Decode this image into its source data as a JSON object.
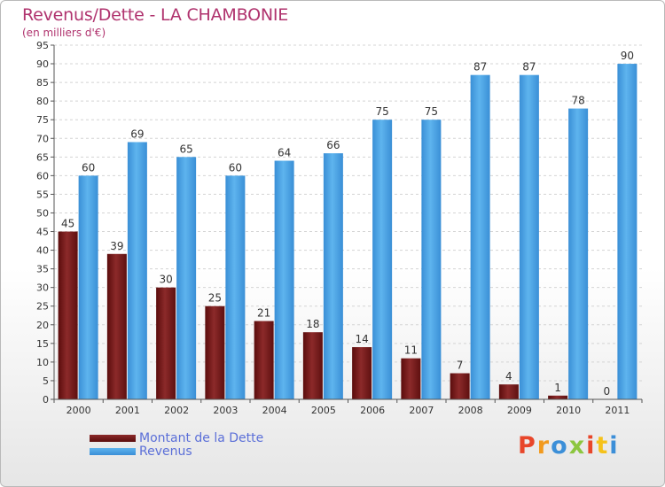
{
  "chart_data": {
    "type": "bar",
    "title": "Revenus/Dette - LA CHAMBONIE",
    "subtitle": "(en milliers d'€)",
    "xlabel": "",
    "ylabel": "",
    "categories": [
      "2000",
      "2001",
      "2002",
      "2003",
      "2004",
      "2005",
      "2006",
      "2007",
      "2008",
      "2009",
      "2010",
      "2011"
    ],
    "series": [
      {
        "name": "Montant de la Dette",
        "color": "#7a1a1a",
        "values": [
          45,
          39,
          30,
          25,
          21,
          18,
          14,
          11,
          7,
          4,
          1,
          0
        ]
      },
      {
        "name": "Revenus",
        "color": "#4ba3e3",
        "values": [
          60,
          69,
          65,
          60,
          64,
          66,
          75,
          75,
          87,
          87,
          78,
          90
        ]
      }
    ],
    "ylim": [
      0,
      95
    ],
    "yticks": [
      0,
      5,
      10,
      15,
      20,
      25,
      30,
      35,
      40,
      45,
      50,
      55,
      60,
      65,
      70,
      75,
      80,
      85,
      90,
      95
    ],
    "grid": true,
    "legend": "bottom-left"
  },
  "logo": {
    "letters": [
      "P",
      "r",
      "o",
      "x",
      "i",
      "t",
      "i"
    ],
    "colors": [
      "#e8462a",
      "#f29a1e",
      "#3c8fd8",
      "#8cc63f",
      "#e8462a",
      "#f5c21b",
      "#3c8fd8"
    ]
  }
}
